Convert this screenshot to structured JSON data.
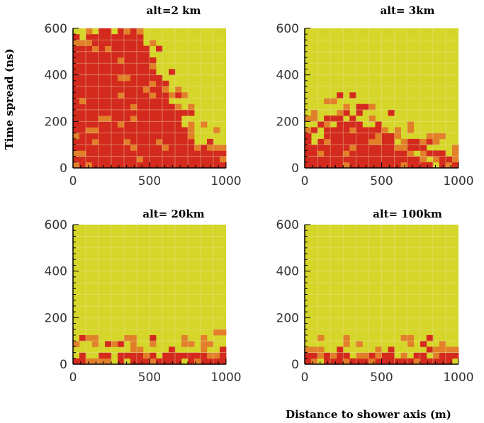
{
  "figure": {
    "ylabel": "Time spread (ns)",
    "xlabel": "Distance to shower axis (m)"
  },
  "colors": {
    "background_yellow": "#d6d62a",
    "hot_red": "#d42a1e",
    "mid_orange": "#e2802a",
    "grid": "#e8e6a8",
    "axis": "#000000"
  },
  "chart_data": [
    {
      "type": "heatmap",
      "title": "alt=2 km",
      "xlim": [
        0,
        1000
      ],
      "ylim": [
        0,
        600
      ],
      "xticks": [
        "0",
        "500",
        "1000"
      ],
      "yticks": [
        "0",
        "200",
        "400",
        "600"
      ],
      "red_boundary": {
        "distance_m": [
          0,
          100,
          200,
          300,
          400,
          500,
          600,
          700,
          800,
          900,
          1000
        ],
        "time_spread_ns": [
          540,
          560,
          580,
          590,
          580,
          480,
          360,
          240,
          150,
          80,
          40
        ]
      }
    },
    {
      "type": "heatmap",
      "title": "alt= 3km",
      "xlim": [
        0,
        1000
      ],
      "ylim": [
        0,
        600
      ],
      "xticks": [
        "0",
        "500",
        "1000"
      ],
      "yticks": [
        "0",
        "200",
        "400",
        "600"
      ],
      "red_boundary": {
        "distance_m": [
          0,
          100,
          200,
          300,
          400,
          500,
          600,
          700,
          800,
          900,
          1000
        ],
        "time_spread_ns": [
          110,
          170,
          210,
          220,
          200,
          160,
          120,
          80,
          50,
          30,
          20
        ]
      }
    },
    {
      "type": "heatmap",
      "title": "alt= 20km",
      "xlim": [
        0,
        1000
      ],
      "ylim": [
        0,
        600
      ],
      "xticks": [
        "0",
        "500",
        "1000"
      ],
      "yticks": [
        "0",
        "200",
        "400",
        "600"
      ],
      "red_boundary": {
        "distance_m": [
          0,
          100,
          200,
          300,
          400,
          500,
          600,
          700,
          800,
          900,
          1000
        ],
        "time_spread_ns": [
          18,
          18,
          18,
          18,
          18,
          18,
          20,
          22,
          25,
          30,
          32
        ]
      }
    },
    {
      "type": "heatmap",
      "title": "alt= 100km",
      "xlim": [
        0,
        1000
      ],
      "ylim": [
        0,
        600
      ],
      "xticks": [
        "0",
        "500",
        "1000"
      ],
      "yticks": [
        "0",
        "200",
        "400",
        "600"
      ],
      "red_boundary": {
        "distance_m": [
          0,
          100,
          200,
          300,
          400,
          500,
          600,
          700,
          800,
          900,
          1000
        ],
        "time_spread_ns": [
          14,
          14,
          14,
          14,
          14,
          14,
          16,
          18,
          22,
          26,
          30
        ]
      }
    }
  ]
}
